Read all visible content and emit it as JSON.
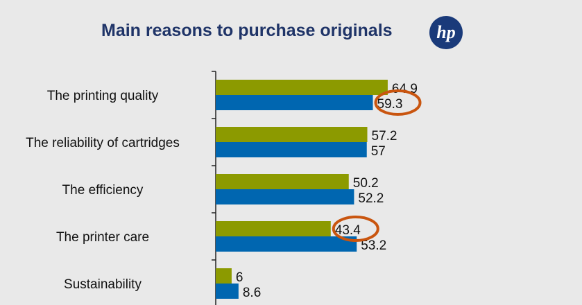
{
  "title": "Main reasons to purchase originals",
  "logo": {
    "text": "hp",
    "icon": "hp-logo-icon",
    "color": "#1a3a7a"
  },
  "colors": {
    "series_1": "#8c9a00",
    "series_2": "#0066b0",
    "highlight": "#c9550f"
  },
  "chart_data": {
    "type": "bar",
    "orientation": "horizontal",
    "categories": [
      "The printing quality",
      "The reliability of cartridges",
      "The efficiency",
      "The printer care",
      "Sustainability"
    ],
    "series": [
      {
        "values": [
          64.9,
          57.2,
          50.2,
          43.4,
          6
        ]
      },
      {
        "values": [
          59.3,
          57,
          52.2,
          53.2,
          8.6
        ]
      }
    ],
    "data_labels": [
      [
        "64.9",
        "57.2",
        "50.2",
        "43.4",
        "6"
      ],
      [
        "59.3",
        "57",
        "52.2",
        "53.2",
        "8.6"
      ]
    ],
    "xlim": [
      0,
      100
    ],
    "grid": false,
    "highlighted": [
      {
        "series": 1,
        "category": 0
      },
      {
        "series": 0,
        "category": 3
      }
    ]
  }
}
